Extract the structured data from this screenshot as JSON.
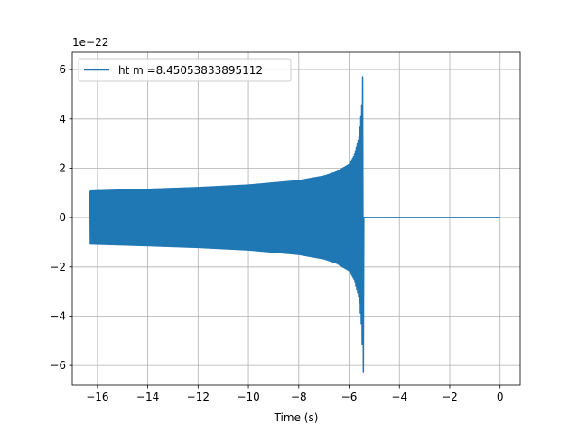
{
  "chart_data": {
    "type": "line",
    "title": "",
    "xlabel": "Time (s)",
    "ylabel": "",
    "y_offset_label": "1e−22",
    "xlim": [
      -17.0,
      0.8
    ],
    "ylim": [
      -6.8,
      6.7
    ],
    "y_scale_factor": 1e-22,
    "x_ticks": [
      -16,
      -14,
      -12,
      -10,
      -8,
      -6,
      -4,
      -2,
      0
    ],
    "x_tick_labels": [
      "−16",
      "−14",
      "−12",
      "−10",
      "−8",
      "−6",
      "−4",
      "−2",
      "0"
    ],
    "y_ticks": [
      -6,
      -4,
      -2,
      0,
      2,
      4,
      6
    ],
    "y_tick_labels": [
      "−6",
      "−4",
      "−2",
      "0",
      "2",
      "4",
      "6"
    ],
    "grid": true,
    "legend_position": "upper-left",
    "series": [
      {
        "name": "ht m =8.45053833895112",
        "color": "#1f77b4",
        "description": "chirp signal with oscillating strain; amplitude envelope values in units of 1e-22",
        "signal_start": -16.3,
        "merger_time": -5.45,
        "signal_end": 0.0,
        "envelope_x": [
          -16.3,
          -14,
          -12,
          -10,
          -8,
          -7,
          -6.5,
          -6,
          -5.8,
          -5.6,
          -5.5,
          -5.45
        ],
        "envelope_amp": [
          1.08,
          1.15,
          1.22,
          1.32,
          1.5,
          1.68,
          1.85,
          2.15,
          2.5,
          3.3,
          4.5,
          6.1
        ],
        "min_at_merger": -6.25,
        "post_merger_value": 0.0
      }
    ]
  }
}
